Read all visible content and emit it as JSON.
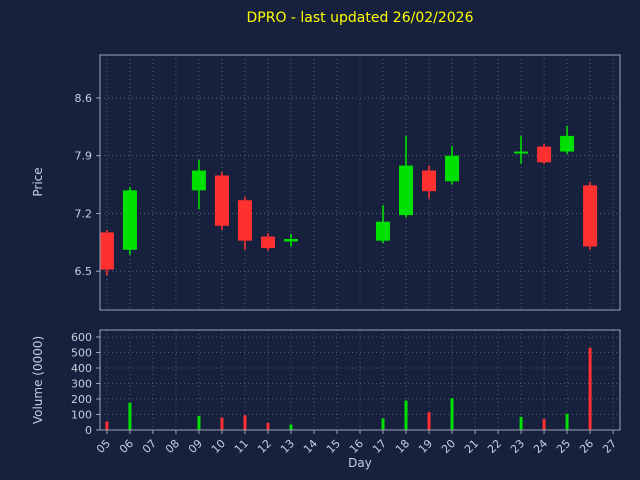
{
  "figure": {
    "title": "DPRO - last updated 26/02/2026"
  },
  "axes": {
    "price_label": "Price",
    "volume_label": "Volume (0000)",
    "x_label": "Day"
  },
  "colors": {
    "background": "#17213d",
    "up": "#00e000",
    "down": "#ff3030",
    "grid": "#aab6c8",
    "spine": "#9aa5b8",
    "tick_text": "#c6cede",
    "title_text": "#ffff00"
  },
  "chart_data": {
    "type": "candlestick",
    "title": "DPRO - last updated 26/02/2026",
    "xlabel": "Day",
    "ylabel_price": "Price",
    "ylabel_volume": "Volume (0000)",
    "legend": "none",
    "grid": "dotted",
    "x_tick_labels": [
      "05",
      "06",
      "07",
      "08",
      "09",
      "10",
      "11",
      "12",
      "13",
      "14",
      "15",
      "16",
      "17",
      "18",
      "19",
      "20",
      "21",
      "22",
      "23",
      "24",
      "25",
      "26",
      "27"
    ],
    "price_tick_values": [
      6.5,
      7.2,
      7.9,
      8.6
    ],
    "volume_tick_values": [
      0,
      100,
      200,
      300,
      400,
      500,
      600
    ],
    "xlim": [
      4.7,
      27.3
    ],
    "price_ylim": [
      6.03,
      9.12
    ],
    "volume_ylim": [
      0,
      645
    ],
    "series": [
      {
        "day": 5,
        "open": 6.97,
        "high": 7.0,
        "low": 6.45,
        "close": 6.52,
        "volume": 55
      },
      {
        "day": 6,
        "open": 6.76,
        "high": 7.52,
        "low": 6.7,
        "close": 7.48,
        "volume": 175
      },
      {
        "day": 9,
        "open": 7.48,
        "high": 7.85,
        "low": 7.25,
        "close": 7.72,
        "volume": 90
      },
      {
        "day": 10,
        "open": 7.66,
        "high": 7.7,
        "low": 7.0,
        "close": 7.05,
        "volume": 80
      },
      {
        "day": 11,
        "open": 7.36,
        "high": 7.4,
        "low": 6.76,
        "close": 6.87,
        "volume": 95
      },
      {
        "day": 12,
        "open": 6.92,
        "high": 6.96,
        "low": 6.75,
        "close": 6.78,
        "volume": 45
      },
      {
        "day": 13,
        "open": 6.86,
        "high": 6.95,
        "low": 6.8,
        "close": 6.89,
        "volume": 35
      },
      {
        "day": 17,
        "open": 6.87,
        "high": 7.3,
        "low": 6.84,
        "close": 7.1,
        "volume": 75
      },
      {
        "day": 18,
        "open": 7.18,
        "high": 8.14,
        "low": 7.15,
        "close": 7.78,
        "volume": 190
      },
      {
        "day": 19,
        "open": 7.72,
        "high": 7.78,
        "low": 7.38,
        "close": 7.47,
        "volume": 115
      },
      {
        "day": 20,
        "open": 7.59,
        "high": 8.02,
        "low": 7.55,
        "close": 7.9,
        "volume": 205
      },
      {
        "day": 23,
        "open": 7.93,
        "high": 8.14,
        "low": 7.8,
        "close": 7.95,
        "volume": 85
      },
      {
        "day": 24,
        "open": 8.01,
        "high": 8.04,
        "low": 7.8,
        "close": 7.82,
        "volume": 70
      },
      {
        "day": 25,
        "open": 7.95,
        "high": 8.26,
        "low": 7.92,
        "close": 8.14,
        "volume": 105
      },
      {
        "day": 26,
        "open": 7.54,
        "high": 7.58,
        "low": 6.76,
        "close": 6.8,
        "volume": 530
      }
    ]
  }
}
